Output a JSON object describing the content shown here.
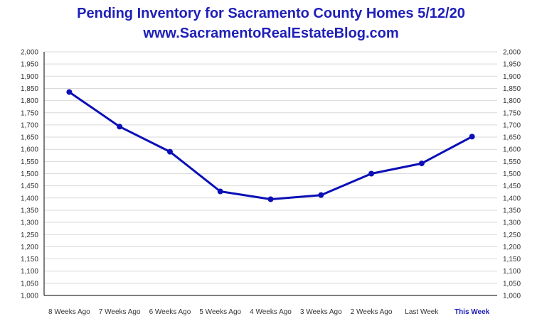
{
  "chart_data": {
    "type": "line",
    "title": "Pending Inventory for Sacramento County Homes 5/12/20",
    "subtitle": "www.SacramentoRealEstateBlog.com",
    "categories": [
      "8 Weeks Ago",
      "7 Weeks Ago",
      "6 Weeks Ago",
      "5 Weeks Ago",
      "4 Weeks Ago",
      "3 Weeks Ago",
      "2 Weeks Ago",
      "Last Week",
      "This Week"
    ],
    "highlight_category": "This Week",
    "series": [
      {
        "values": [
          1835,
          1693,
          1590,
          1427,
          1395,
          1412,
          1500,
          1542,
          1652
        ],
        "color": "#0b0fb5"
      }
    ],
    "ylim": [
      1000,
      2000
    ],
    "y_step": 50,
    "y_ticks": [
      "1,000",
      "1,050",
      "1,100",
      "1,150",
      "1,200",
      "1,250",
      "1,300",
      "1,350",
      "1,400",
      "1,450",
      "1,500",
      "1,550",
      "1,600",
      "1,650",
      "1,700",
      "1,750",
      "1,800",
      "1,850",
      "1,900",
      "1,950",
      "2,000"
    ],
    "grid": true,
    "secondary_axis": true,
    "xlabel": "",
    "ylabel": "",
    "colors": {
      "title": "#1f20b8",
      "line": "#0b0fb5",
      "highlight_label": "#1f20b8",
      "axis_label": "#333333",
      "grid": "#d9d9d9",
      "axis": "#000000"
    }
  }
}
